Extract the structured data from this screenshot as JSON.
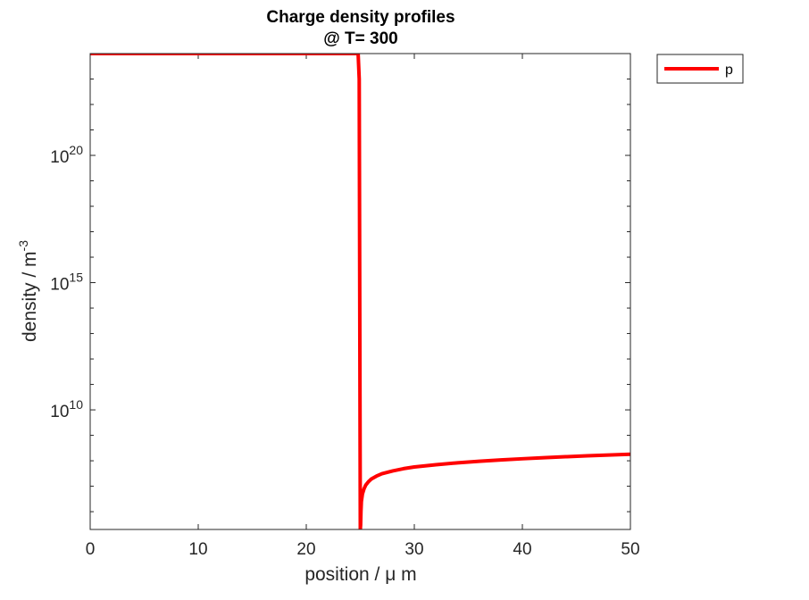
{
  "chart_data": {
    "type": "line",
    "title": "Charge density profiles",
    "subtitle": "@ T= 300",
    "xlabel": "position / μ m",
    "ylabel": "density / m",
    "ylabel_superscript": "-3",
    "x_scale": "linear",
    "y_scale": "log",
    "xlim": [
      0,
      50
    ],
    "ylim": [
      200000.0,
      1e+24
    ],
    "x_ticks": [
      0,
      10,
      20,
      30,
      40,
      50
    ],
    "x_tick_labels": [
      "0",
      "10",
      "20",
      "30",
      "40",
      "50"
    ],
    "y_ticks": [
      10000000000.0,
      1000000000000000.0,
      1e+20
    ],
    "y_tick_labels": [
      {
        "base": "10",
        "exp": "10"
      },
      {
        "base": "10",
        "exp": "15"
      },
      {
        "base": "10",
        "exp": "20"
      }
    ],
    "grid": false,
    "legend_position": "outside-top-right",
    "series": [
      {
        "name": "p",
        "color": "#ff0000",
        "x": [
          0,
          5,
          10,
          15,
          20,
          24.8,
          24.9,
          25.0,
          25.03,
          25.06,
          25.1,
          25.2,
          25.35,
          25.5,
          25.75,
          26,
          26.5,
          27,
          28,
          29,
          30,
          32,
          34,
          36,
          38,
          40,
          42,
          44,
          46,
          48,
          50
        ],
        "y": [
          1e+24,
          1e+24,
          1e+24,
          1e+24,
          1e+24,
          1e+24,
          1e+23,
          200000.0,
          300000.0,
          1000000.0,
          2500000.0,
          5000000.0,
          8000000.0,
          11000000.0,
          15000000.0,
          19000000.0,
          25000000.0,
          31000000.0,
          40000000.0,
          49000000.0,
          57000000.0,
          70000000.0,
          83000000.0,
          96000000.0,
          108000000.0,
          120000000.0,
          132000000.0,
          144000000.0,
          156000000.0,
          168000000.0,
          180000000.0
        ]
      }
    ]
  }
}
